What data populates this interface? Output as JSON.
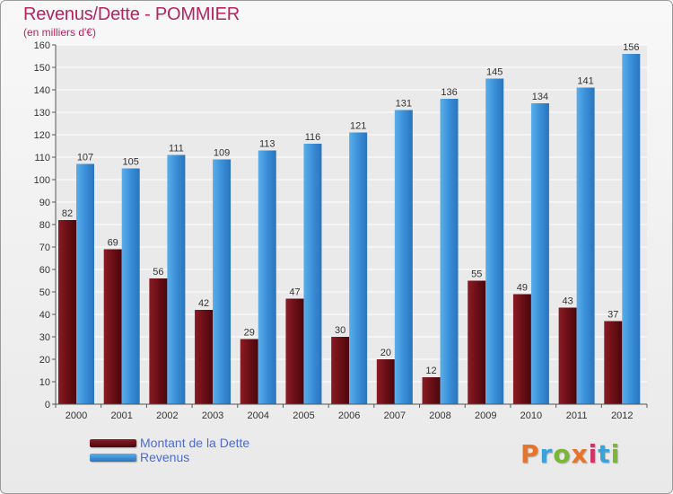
{
  "title": "Revenus/Dette - POMMIER",
  "subtitle": "(en milliers d'€)",
  "logo": {
    "text": "Proxiti",
    "letter_colors": [
      "#e8732a",
      "#3aa3d9",
      "#7bb634",
      "#e8732a",
      "#c9376b",
      "#3aa3d9",
      "#7bb634"
    ]
  },
  "colors": {
    "title": "#b5245d",
    "dette": "#6b0f16",
    "revenus": "#3a8fd8",
    "legend_text": "#4a6bd8"
  },
  "chart_data": {
    "type": "bar",
    "title": "Revenus/Dette - POMMIER",
    "subtitle": "(en milliers d'€)",
    "categories": [
      "2000",
      "2001",
      "2002",
      "2003",
      "2004",
      "2005",
      "2006",
      "2007",
      "2008",
      "2009",
      "2010",
      "2011",
      "2012"
    ],
    "series": [
      {
        "name": "Montant de la Dette",
        "values": [
          82,
          69,
          56,
          42,
          29,
          47,
          30,
          20,
          12,
          55,
          49,
          43,
          37
        ]
      },
      {
        "name": "Revenus",
        "values": [
          107,
          105,
          111,
          109,
          113,
          116,
          121,
          131,
          136,
          145,
          134,
          141,
          156
        ]
      }
    ],
    "ylim": [
      0,
      160
    ],
    "yticks": [
      0,
      10,
      20,
      30,
      40,
      50,
      60,
      70,
      80,
      90,
      100,
      110,
      120,
      130,
      140,
      150,
      160
    ],
    "grid": true,
    "legend": "bottom-left",
    "data_labels": true
  }
}
